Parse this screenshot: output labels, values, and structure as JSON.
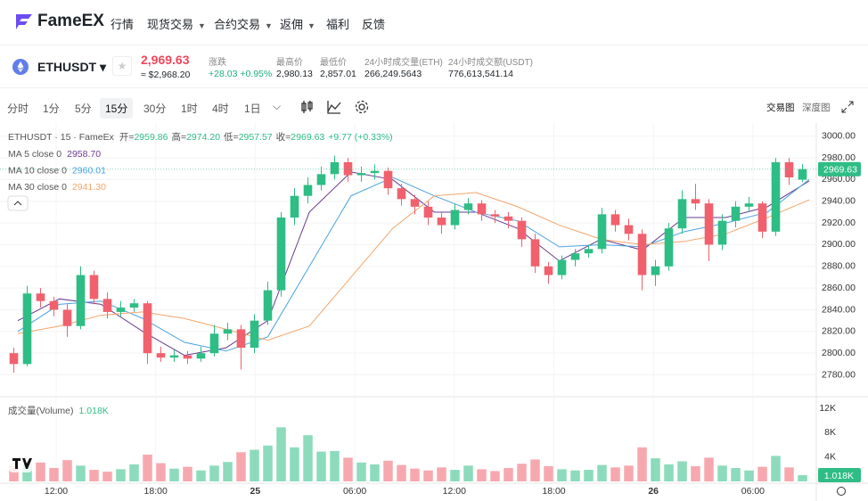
{
  "nav": {
    "logo": "FameEX",
    "items": [
      "行情",
      "现货交易",
      "合约交易",
      "返佣",
      "福利",
      "反馈"
    ],
    "dropdown": [
      false,
      true,
      true,
      true,
      false,
      false
    ]
  },
  "ticker": {
    "symbol": "ETHUSDT",
    "price": "2,969.63",
    "price_usd": "≈ $2,968.20",
    "stats": [
      {
        "label": "涨跌",
        "value": "+28.03 +0.95%"
      },
      {
        "label": "最高价",
        "value": "2,980.13"
      },
      {
        "label": "最低价",
        "value": "2,857.01"
      },
      {
        "label": "24小时成交量(ETH)",
        "value": "266,249.5643"
      },
      {
        "label": "24小时成交额(USDT)",
        "value": "776,613,541.14"
      }
    ]
  },
  "toolbar": {
    "intervals": [
      "分时",
      "1分",
      "5分",
      "15分",
      "30分",
      "1时",
      "4时",
      "1日"
    ],
    "selected": 3,
    "views": [
      "交易图",
      "深度图"
    ]
  },
  "chart_data": {
    "type": "candlestick",
    "title": "ETHUSDT · 15 · FameEx",
    "ohlc_labels": [
      "开=",
      "高=",
      "低=",
      "收="
    ],
    "ohlc_values": [
      "2959.86",
      "2974.20",
      "2957.57",
      "2969.63"
    ],
    "change": "+9.77 (+0.33%)",
    "up_color": "#2ebd85",
    "down_color": "#f0616d",
    "candles": [
      [
        2800,
        2805,
        2782,
        2790
      ],
      [
        2790,
        2862,
        2788,
        2855
      ],
      [
        2855,
        2860,
        2842,
        2848
      ],
      [
        2848,
        2852,
        2834,
        2840
      ],
      [
        2840,
        2845,
        2815,
        2825
      ],
      [
        2825,
        2880,
        2822,
        2872
      ],
      [
        2872,
        2876,
        2845,
        2850
      ],
      [
        2850,
        2856,
        2832,
        2838
      ],
      [
        2838,
        2848,
        2834,
        2842
      ],
      [
        2842,
        2850,
        2838,
        2846
      ],
      [
        2846,
        2848,
        2790,
        2800
      ],
      [
        2800,
        2806,
        2792,
        2796
      ],
      [
        2796,
        2803,
        2792,
        2798
      ],
      [
        2798,
        2802,
        2790,
        2795
      ],
      [
        2795,
        2806,
        2792,
        2800
      ],
      [
        2800,
        2826,
        2797,
        2818
      ],
      [
        2818,
        2828,
        2812,
        2822
      ],
      [
        2822,
        2826,
        2785,
        2805
      ],
      [
        2805,
        2836,
        2800,
        2830
      ],
      [
        2830,
        2866,
        2826,
        2858
      ],
      [
        2858,
        2930,
        2852,
        2925
      ],
      [
        2925,
        2952,
        2918,
        2945
      ],
      [
        2945,
        2962,
        2938,
        2955
      ],
      [
        2955,
        2972,
        2950,
        2965
      ],
      [
        2965,
        2982,
        2960,
        2976
      ],
      [
        2976,
        2980,
        2958,
        2964
      ],
      [
        2964,
        2972,
        2958,
        2966
      ],
      [
        2966,
        2974,
        2960,
        2968
      ],
      [
        2968,
        2971,
        2946,
        2952
      ],
      [
        2952,
        2956,
        2936,
        2942
      ],
      [
        2942,
        2946,
        2928,
        2935
      ],
      [
        2935,
        2940,
        2918,
        2925
      ],
      [
        2925,
        2930,
        2910,
        2918
      ],
      [
        2918,
        2938,
        2914,
        2932
      ],
      [
        2932,
        2943,
        2928,
        2938
      ],
      [
        2938,
        2941,
        2922,
        2928
      ],
      [
        2928,
        2932,
        2920,
        2926
      ],
      [
        2926,
        2930,
        2915,
        2922
      ],
      [
        2922,
        2925,
        2898,
        2905
      ],
      [
        2905,
        2910,
        2874,
        2880
      ],
      [
        2880,
        2884,
        2864,
        2872
      ],
      [
        2872,
        2890,
        2868,
        2886
      ],
      [
        2886,
        2896,
        2880,
        2892
      ],
      [
        2892,
        2900,
        2888,
        2896
      ],
      [
        2896,
        2934,
        2892,
        2928
      ],
      [
        2928,
        2932,
        2912,
        2918
      ],
      [
        2918,
        2924,
        2904,
        2910
      ],
      [
        2910,
        2914,
        2858,
        2872
      ],
      [
        2872,
        2886,
        2862,
        2880
      ],
      [
        2880,
        2920,
        2876,
        2915
      ],
      [
        2915,
        2950,
        2910,
        2942
      ],
      [
        2942,
        2956,
        2932,
        2938
      ],
      [
        2938,
        2942,
        2885,
        2900
      ],
      [
        2900,
        2928,
        2895,
        2922
      ],
      [
        2922,
        2940,
        2916,
        2935
      ],
      [
        2935,
        2944,
        2930,
        2938
      ],
      [
        2938,
        2940,
        2906,
        2912
      ],
      [
        2912,
        2980,
        2908,
        2976
      ],
      [
        2976,
        2980,
        2955,
        2962
      ],
      [
        2959.86,
        2974.2,
        2957.57,
        2969.63
      ]
    ],
    "ma": [
      {
        "name": "MA 5 close 0",
        "color": "#6a3b8f",
        "legend_value": "2958.70",
        "values": [
          2830,
          2850,
          2845,
          2820,
          2798,
          2805,
          2830,
          2930,
          2967,
          2960,
          2930,
          2930,
          2915,
          2885,
          2905,
          2895,
          2925,
          2925,
          2935,
          2958.7
        ]
      },
      {
        "name": "MA 10 close 0",
        "color": "#4aa3df",
        "legend_value": "2960.01",
        "values": [
          2820,
          2845,
          2848,
          2832,
          2810,
          2802,
          2815,
          2880,
          2945,
          2962,
          2945,
          2930,
          2922,
          2898,
          2900,
          2898,
          2912,
          2920,
          2930,
          2960.01
        ]
      },
      {
        "name": "MA 30 close 0",
        "color": "#f4a46a",
        "legend_value": "2941.30",
        "values": [
          2818,
          2825,
          2835,
          2838,
          2832,
          2822,
          2812,
          2825,
          2870,
          2915,
          2945,
          2948,
          2935,
          2918,
          2905,
          2900,
          2903,
          2910,
          2925,
          2941.3
        ]
      }
    ],
    "ylim": [
      2764,
      3008
    ],
    "yticks": [
      {
        "value": 3000,
        "label": "3000.00"
      },
      {
        "value": 2980,
        "label": "2980.00"
      },
      {
        "value": 2960,
        "label": "2960.00"
      },
      {
        "value": 2940,
        "label": "2940.00"
      },
      {
        "value": 2920,
        "label": "2920.00"
      },
      {
        "value": 2900,
        "label": "2900.00"
      },
      {
        "value": 2880,
        "label": "2880.00"
      },
      {
        "value": 2860,
        "label": "2860.00"
      },
      {
        "value": 2840,
        "label": "2840.00"
      },
      {
        "value": 2820,
        "label": "2820.00"
      },
      {
        "value": 2800,
        "label": "2800.00"
      },
      {
        "value": 2780,
        "label": "2780.00"
      }
    ],
    "volume_title": "成交量(Volume)",
    "volume_legend_value": "1.018K",
    "volumes": [
      2.5,
      2.8,
      3.1,
      2.2,
      3.5,
      2.6,
      1.9,
      1.6,
      2.0,
      2.8,
      4.4,
      3.0,
      2.1,
      2.4,
      1.8,
      2.6,
      3.2,
      4.8,
      5.2,
      5.9,
      8.9,
      5.6,
      7.6,
      4.9,
      5.0,
      3.9,
      3.1,
      2.8,
      3.4,
      2.7,
      2.1,
      1.8,
      2.3,
      1.9,
      2.6,
      2.0,
      1.7,
      2.2,
      2.9,
      3.6,
      2.5,
      2.0,
      1.8,
      1.9,
      2.7,
      2.3,
      2.6,
      5.6,
      3.8,
      2.8,
      3.3,
      2.5,
      3.9,
      2.6,
      2.2,
      1.8,
      2.4,
      4.2,
      2.3,
      1.018
    ],
    "vlim": [
      0,
      13.2
    ],
    "vticks": [
      {
        "value": 12,
        "label": "12K"
      },
      {
        "value": 8,
        "label": "8K"
      },
      {
        "value": 4,
        "label": "4K"
      }
    ],
    "xtick_labels": [
      "12:00",
      "18:00",
      "25",
      "06:00",
      "12:00",
      "18:00",
      "26",
      "06:00"
    ]
  }
}
